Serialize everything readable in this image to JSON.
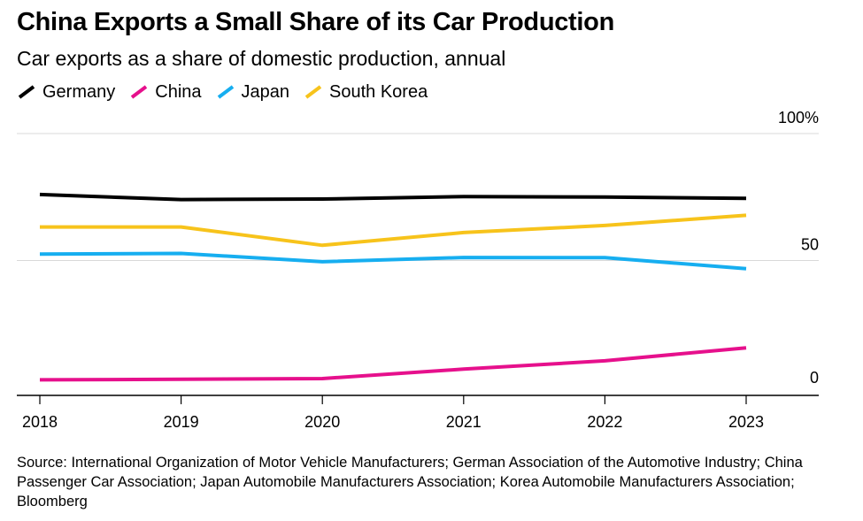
{
  "title": "China Exports a Small Share of its Car Production",
  "subtitle": "Car exports as a share of domestic production, annual",
  "source": "Source: International Organization of Motor Vehicle Manufacturers; German Association of the Automotive Industry; China Passenger Car Association; Japan Automobile Manufacturers Association; Korea Automobile Manufacturers Association; Bloomberg",
  "colors": {
    "Germany": "#000000",
    "China": "#e6108c",
    "Japan": "#16aef0",
    "South Korea": "#f7c31b",
    "gridline": "#d9d9d9",
    "axis": "#000000"
  },
  "chart_data": {
    "type": "line",
    "x": [
      "2018",
      "2019",
      "2020",
      "2021",
      "2022",
      "2023"
    ],
    "ylim": [
      -2,
      100
    ],
    "yticks": [
      0,
      50,
      100
    ],
    "ytick_labels": [
      "0",
      "50",
      "100%"
    ],
    "ylabel": "",
    "xlabel": "",
    "grid": true,
    "legend_position": "top-left",
    "series": [
      {
        "name": "Germany",
        "values": [
          76,
          74,
          74.2,
          75.2,
          75,
          74.5
        ]
      },
      {
        "name": "China",
        "values": [
          3,
          3.2,
          3.5,
          7.2,
          10.5,
          15.6
        ]
      },
      {
        "name": "Japan",
        "values": [
          52.5,
          52.8,
          49.5,
          51.2,
          51.1,
          46.8
        ]
      },
      {
        "name": "South Korea",
        "values": [
          63.2,
          63.2,
          56,
          61,
          63.8,
          67.8
        ]
      }
    ]
  }
}
